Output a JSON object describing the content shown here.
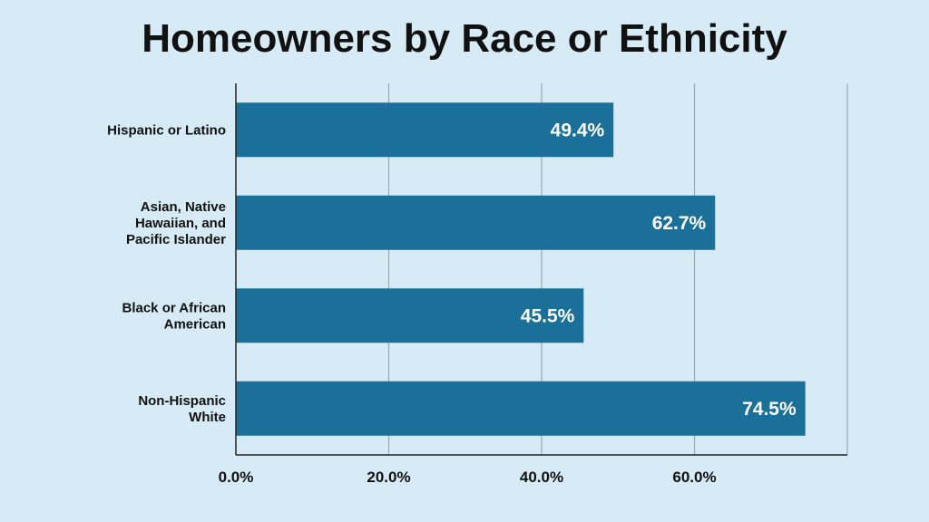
{
  "chart_data": {
    "type": "bar",
    "orientation": "horizontal",
    "title": "Homeowners by Race or Ethnicity",
    "categories": [
      [
        "Hispanic or Latino"
      ],
      [
        "Asian, Native",
        "Hawaiian, and",
        "Pacific Islander"
      ],
      [
        "Black or African",
        "American"
      ],
      [
        "Non-Hispanic",
        "White"
      ]
    ],
    "values": [
      49.4,
      62.7,
      45.5,
      74.5
    ],
    "value_labels": [
      "49.4%",
      "62.7%",
      "45.5%",
      "74.5%"
    ],
    "xlim": [
      0,
      80
    ],
    "x_ticks": [
      0,
      20,
      40,
      60
    ],
    "x_tick_labels": [
      "0.0%",
      "20.0%",
      "40.0%",
      "60.0%"
    ],
    "grid": true,
    "bar_color": "#1b7099",
    "grid_color": "#9eaab4"
  }
}
